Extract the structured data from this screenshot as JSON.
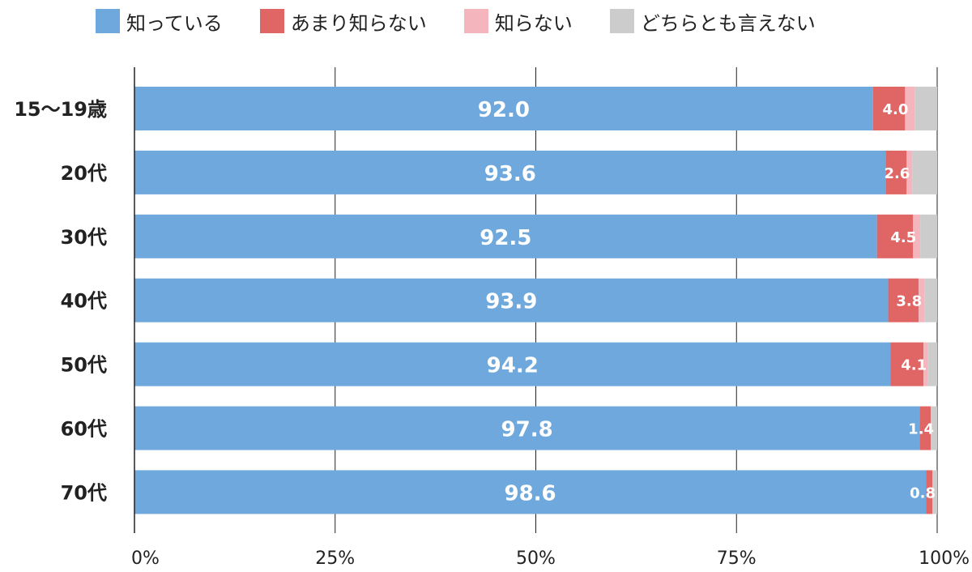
{
  "chart_data": {
    "type": "bar",
    "orientation": "horizontal",
    "stacked": true,
    "normalized_percent": true,
    "categories": [
      "15〜19歳",
      "20代",
      "30代",
      "40代",
      "50代",
      "60代",
      "70代"
    ],
    "series": [
      {
        "name": "知っている",
        "color": "#6fa8dc",
        "values": [
          92.0,
          93.6,
          92.5,
          93.9,
          94.2,
          97.8,
          98.6
        ]
      },
      {
        "name": "あまり知らない",
        "color": "#e06666",
        "values": [
          4.0,
          2.6,
          4.5,
          3.8,
          4.1,
          1.4,
          0.8
        ]
      },
      {
        "name": "知らない",
        "color": "#f4b6bc",
        "values": [
          1.2,
          0.7,
          0.9,
          0.7,
          0.5,
          0.1,
          0.1
        ]
      },
      {
        "name": "どちらとも言えない",
        "color": "#cccccc",
        "values": [
          2.8,
          3.1,
          2.1,
          1.6,
          1.2,
          0.7,
          0.5
        ]
      }
    ],
    "data_labels": {
      "知っている": [
        "92.0",
        "93.6",
        "92.5",
        "93.9",
        "94.2",
        "97.8",
        "98.6"
      ],
      "あまり知らない": [
        "4.0",
        "2.6",
        "4.5",
        "3.8",
        "4.1",
        "1.4",
        "0.8"
      ]
    },
    "x_ticks": [
      "0%",
      "25%",
      "50%",
      "75%",
      "100%"
    ],
    "xlim": [
      0,
      100
    ],
    "grid": "vertical",
    "legend_position": "top"
  }
}
